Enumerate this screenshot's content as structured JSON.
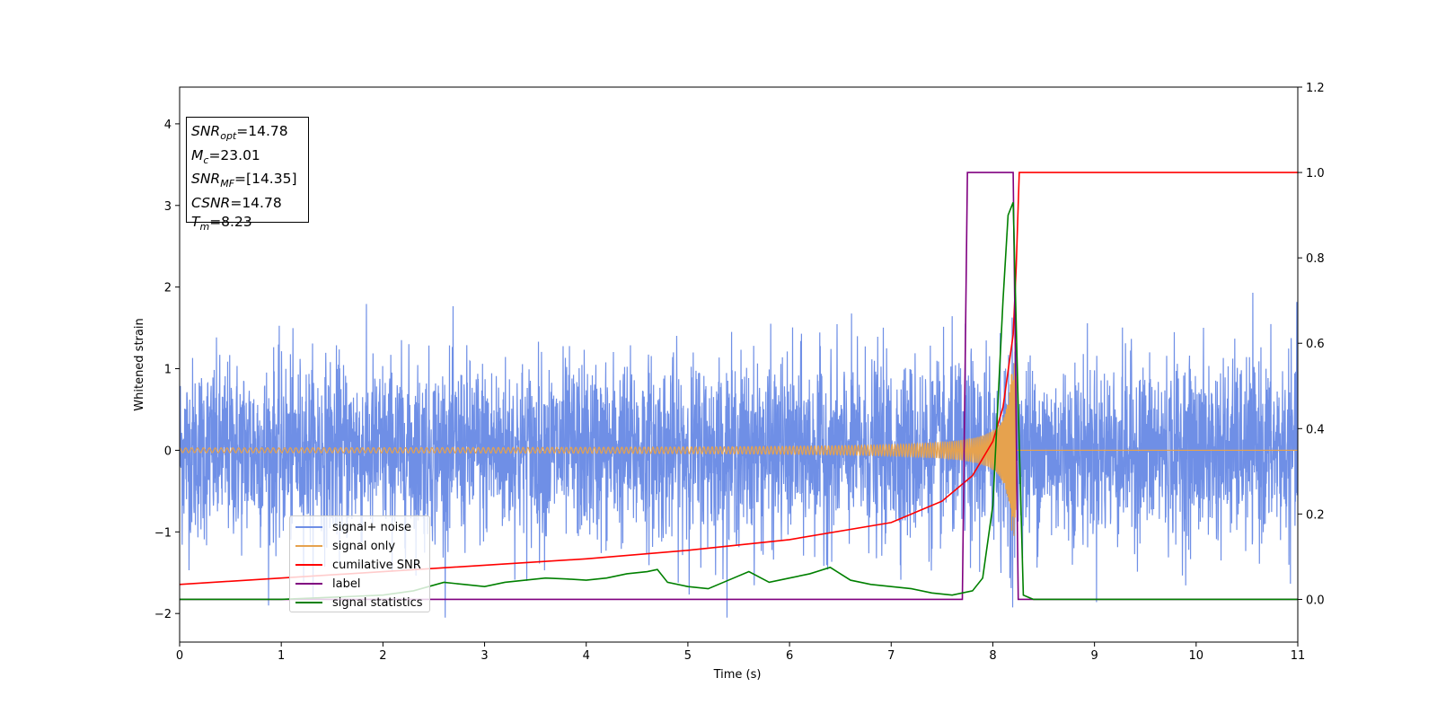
{
  "chart_data": {
    "type": "line",
    "xlabel": "Time (s)",
    "ylabel": "Whitened strain",
    "xlim": [
      0,
      11
    ],
    "ylim_left": [
      -2.35,
      4.45
    ],
    "ylim_right": [
      -0.1,
      1.2
    ],
    "x_ticks": [
      "0",
      "1",
      "2",
      "3",
      "4",
      "5",
      "6",
      "7",
      "8",
      "9",
      "10",
      "11"
    ],
    "y_ticks_left": [
      "−2",
      "−1",
      "0",
      "1",
      "2",
      "3",
      "4"
    ],
    "y_ticks_right": [
      "0.0",
      "0.2",
      "0.4",
      "0.6",
      "0.8",
      "1.0",
      "1.2"
    ],
    "grid": false,
    "legend_position": "lower-left",
    "annotations": {
      "snr_opt": {
        "name": "SNR",
        "sub": "opt",
        "value": "=14.78"
      },
      "mc": {
        "name": "M",
        "sub": "c",
        "value": "=23.01"
      },
      "snr_mf": {
        "name": "SNR",
        "sub": "MF",
        "value": "=[14.35]"
      },
      "csnr": {
        "name": "CSNR",
        "value": "=14.78"
      },
      "tm": {
        "name": "T",
        "sub": "m",
        "value": "=8.23"
      }
    },
    "colors": {
      "signal_noise": "#6f8fe6",
      "signal_only": "#e6a24e",
      "cumulative_snr": "#ff0000",
      "label": "#800080",
      "signal_statistics": "#008000"
    },
    "series": [
      {
        "name": "signal+ noise",
        "axis": "left",
        "description_values": {
          "noise_std": 0.55,
          "range": [
            -2.05,
            1.93
          ]
        }
      },
      {
        "name": "signal only",
        "axis": "left",
        "chirp": {
          "merger_time": 8.23,
          "peak_amplitude": 1.1,
          "start_amplitude": 0.02
        }
      },
      {
        "name": "cumilative SNR",
        "axis": "right",
        "x": [
          0,
          1,
          2,
          3,
          4,
          5,
          6,
          7,
          7.5,
          7.8,
          8.0,
          8.1,
          8.2,
          8.23,
          8.26,
          11
        ],
        "y": [
          0.035,
          0.05,
          0.065,
          0.08,
          0.095,
          0.115,
          0.14,
          0.18,
          0.23,
          0.29,
          0.37,
          0.45,
          0.62,
          0.78,
          1.0,
          1.0
        ]
      },
      {
        "name": "label",
        "axis": "right",
        "x": [
          0,
          7.7,
          7.75,
          8.2,
          8.25,
          11
        ],
        "y": [
          0,
          0,
          1,
          1,
          0,
          0
        ]
      },
      {
        "name": "signal statistics",
        "axis": "right",
        "x": [
          0,
          1.0,
          2.0,
          2.3,
          2.6,
          2.8,
          3.0,
          3.2,
          3.4,
          3.6,
          3.8,
          4.0,
          4.2,
          4.4,
          4.6,
          4.7,
          4.8,
          5.0,
          5.2,
          5.4,
          5.6,
          5.8,
          6.0,
          6.2,
          6.4,
          6.6,
          6.8,
          7.0,
          7.2,
          7.4,
          7.6,
          7.8,
          7.9,
          8.0,
          8.1,
          8.15,
          8.2,
          8.25,
          8.3,
          8.4,
          11
        ],
        "y": [
          0.0,
          0.0,
          0.01,
          0.02,
          0.04,
          0.035,
          0.03,
          0.04,
          0.045,
          0.05,
          0.048,
          0.045,
          0.05,
          0.06,
          0.065,
          0.07,
          0.04,
          0.03,
          0.025,
          0.045,
          0.065,
          0.04,
          0.05,
          0.06,
          0.075,
          0.045,
          0.035,
          0.03,
          0.025,
          0.015,
          0.01,
          0.02,
          0.05,
          0.22,
          0.7,
          0.9,
          0.93,
          0.45,
          0.01,
          0.0,
          0.0
        ]
      }
    ]
  }
}
